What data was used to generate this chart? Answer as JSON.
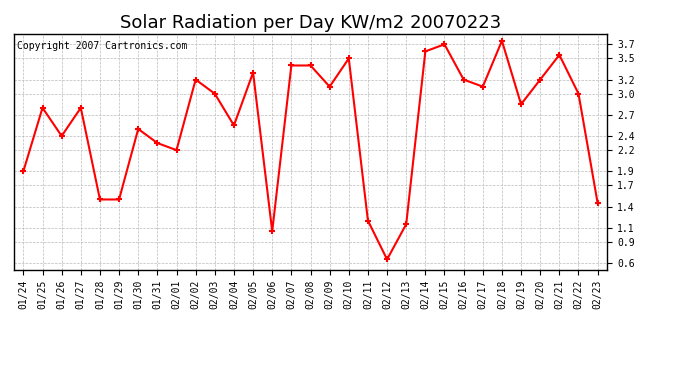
{
  "title": "Solar Radiation per Day KW/m2 20070223",
  "copyright_text": "Copyright 2007 Cartronics.com",
  "dates": [
    "01/24",
    "01/25",
    "01/26",
    "01/27",
    "01/28",
    "01/29",
    "01/30",
    "01/31",
    "02/01",
    "02/02",
    "02/03",
    "02/04",
    "02/05",
    "02/06",
    "02/07",
    "02/08",
    "02/09",
    "02/10",
    "02/11",
    "02/12",
    "02/13",
    "02/14",
    "02/15",
    "02/16",
    "02/17",
    "02/18",
    "02/19",
    "02/20",
    "02/21",
    "02/22",
    "02/23"
  ],
  "values": [
    1.9,
    2.8,
    2.4,
    2.8,
    1.5,
    1.5,
    2.5,
    2.3,
    2.2,
    3.2,
    3.0,
    2.55,
    3.3,
    1.05,
    3.4,
    3.4,
    3.1,
    3.5,
    1.2,
    0.65,
    1.15,
    3.6,
    3.7,
    3.2,
    3.1,
    3.75,
    2.85,
    3.2,
    3.55,
    3.0,
    1.45
  ],
  "line_color": "#ff0000",
  "marker": "+",
  "marker_size": 5,
  "marker_edge_width": 1.5,
  "line_width": 1.5,
  "bg_color": "#ffffff",
  "grid_color": "#bbbbbb",
  "ylim": [
    0.5,
    3.85
  ],
  "yticks": [
    0.6,
    0.9,
    1.1,
    1.4,
    1.7,
    1.9,
    2.2,
    2.4,
    2.7,
    3.0,
    3.2,
    3.5,
    3.7
  ],
  "title_fontsize": 13,
  "copyright_fontsize": 7,
  "tick_fontsize": 7,
  "axis_label_color": "#000000"
}
